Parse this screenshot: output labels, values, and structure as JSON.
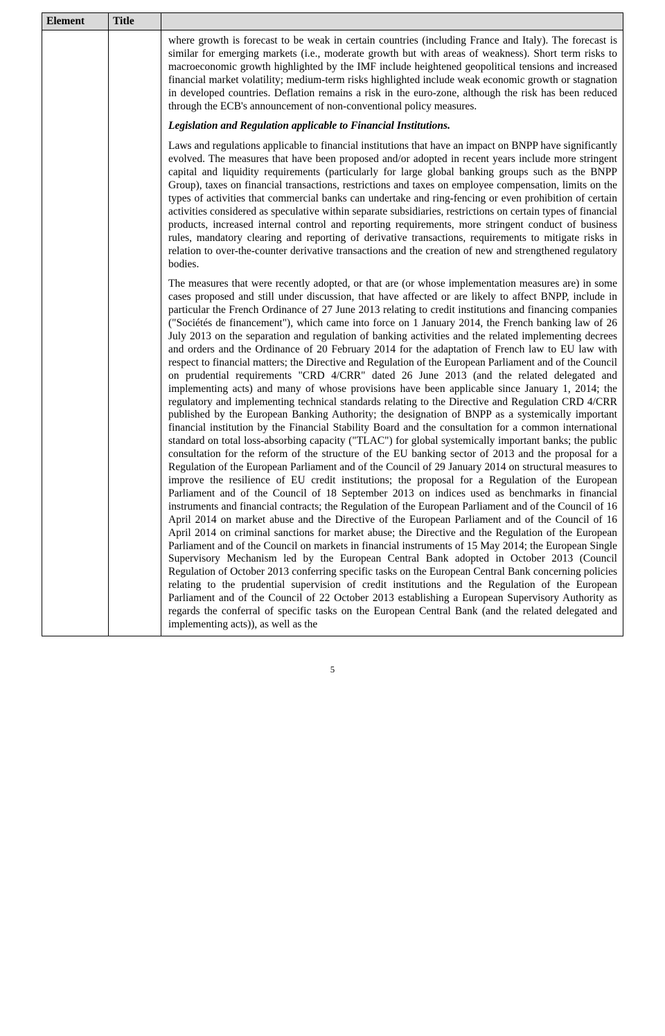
{
  "table": {
    "headers": {
      "element": "Element",
      "title": "Title",
      "content": ""
    },
    "body": {
      "para1": "where growth is forecast to be weak in certain countries (including France and Italy). The forecast is similar for emerging markets (i.e., moderate growth but with areas of weakness). Short term risks to macroeconomic growth highlighted by the IMF include heightened geopolitical tensions and increased financial market volatility; medium-term risks highlighted include weak economic growth or stagnation in developed countries. Deflation remains a risk in the euro-zone, although the risk has been reduced through the ECB's announcement of non-conventional policy measures.",
      "heading1": "Legislation and Regulation applicable to Financial Institutions.",
      "para2": "Laws and regulations applicable to financial institutions that have an impact on BNPP have significantly evolved. The measures that have been proposed and/or adopted in recent years include more stringent capital and liquidity requirements (particularly for large global banking groups such as the BNPP Group), taxes on financial transactions, restrictions and taxes on employee compensation, limits on the types of activities that commercial banks can undertake and ring-fencing or even prohibition of certain activities considered as speculative within separate subsidiaries, restrictions on certain types of financial products, increased internal control and reporting requirements, more stringent conduct of business rules, mandatory clearing and reporting of derivative transactions, requirements to mitigate risks in relation to over-the-counter derivative transactions and the creation of new and strengthened regulatory bodies.",
      "para3": "The measures that were recently adopted, or that are (or whose implementation measures are) in some cases proposed and still under discussion, that have affected or are likely to affect BNPP, include in particular the French Ordinance of 27 June 2013 relating to credit institutions and financing companies (\"Sociétés de financement\"), which came into force on 1 January 2014, the French banking law of 26 July 2013 on the separation and regulation of banking activities and the related implementing decrees and orders and the Ordinance of 20 February 2014 for the adaptation of French law to EU law with respect to financial matters; the Directive and Regulation of the European Parliament and of the Council on prudential requirements \"CRD 4/CRR\" dated 26 June 2013 (and the related delegated and implementing acts) and many of whose provisions have been applicable since January 1, 2014; the regulatory and implementing technical standards relating to the Directive and Regulation CRD 4/CRR published by the European Banking Authority; the designation of BNPP as a systemically important financial institution by the Financial Stability Board and the consultation for a common international standard on total loss-absorbing capacity (\"TLAC\") for global systemically important banks; the public consultation for the reform of the structure of the EU banking sector of 2013 and the proposal for a Regulation of the European Parliament and of the Council of 29 January 2014 on structural measures to improve the resilience of EU credit institutions; the proposal for a Regulation of the European Parliament and of the Council of 18 September 2013 on indices used as benchmarks in financial instruments and financial contracts; the Regulation of the European Parliament and of the Council of 16 April 2014 on market abuse and the Directive of the European Parliament and of the Council of 16 April 2014 on criminal sanctions for market abuse; the Directive and the Regulation of the European Parliament and of the Council on markets in financial instruments of 15 May 2014; the European Single Supervisory Mechanism led by the European Central Bank adopted in October 2013 (Council Regulation of October 2013 conferring specific tasks on the European Central Bank concerning policies relating to the prudential supervision of credit institutions and the Regulation of the European Parliament and of the Council of 22 October 2013 establishing a European Supervisory Authority as regards the conferral of specific tasks on the European Central Bank (and the related delegated and implementing acts)), as well as the"
    }
  },
  "pageNumber": "5"
}
